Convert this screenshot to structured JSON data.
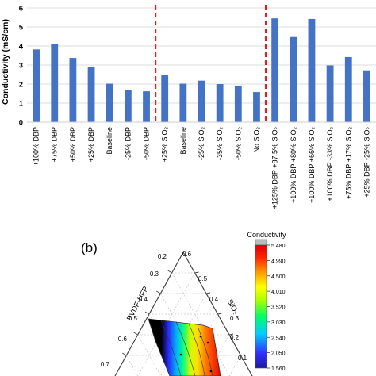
{
  "chart_data": [
    {
      "type": "bar",
      "ylabel": "Conductivity (mS/cm)",
      "ylim": [
        0,
        6
      ],
      "yticks": [
        0,
        1,
        2,
        3,
        4,
        5,
        6
      ],
      "grid": true,
      "bar_color": "#4472c4",
      "divider_color": "#e02020",
      "dividers_after": [
        6,
        12
      ],
      "categories": [
        "+100% DBP",
        "+75% DBP",
        "+50% DBP",
        "+25% DBP",
        "Baseline",
        "-25% DBP",
        "-50% DBP",
        "+25% SiO₂",
        "Baseline",
        "-25% SiO₂",
        "-35% SiO₂",
        "-50% SiO₂",
        "No SiO₂",
        "+125% DBP +87.5% SiO₂",
        "+100% DBP +80% SiO₂",
        "+100% DBP +66% SiO₂",
        "+100% DBP -33% SiO₂",
        "+75% DBP +17% SiO₂",
        "+25% DBP -25% SiO₂"
      ],
      "values": [
        3.82,
        4.12,
        3.37,
        2.88,
        2.02,
        1.68,
        1.62,
        2.48,
        2.02,
        2.18,
        2.0,
        1.92,
        1.58,
        5.45,
        4.47,
        5.42,
        2.98,
        3.42,
        2.72
      ]
    },
    {
      "type": "heatmap",
      "panel_label": "(b)",
      "colorbar_title": "Conductivity",
      "colorbar_ticks": [
        "5.480",
        "4.990",
        "4.500",
        "4.010",
        "3.520",
        "3.030",
        "2.540",
        "2.050",
        "1.560"
      ],
      "colorbar_range": [
        1.56,
        5.48
      ],
      "ternary_axes": {
        "left_label": "PVDF-HFP",
        "right_label": "SiO₂",
        "left_ticks": [
          "0.2",
          "0.3",
          "0.4",
          "0.5",
          "0.6",
          "0.7"
        ],
        "top_tick": "0.6",
        "right_ticks": [
          "0.5",
          "0.4",
          "0.3",
          "0.2",
          "0.1"
        ]
      }
    }
  ]
}
